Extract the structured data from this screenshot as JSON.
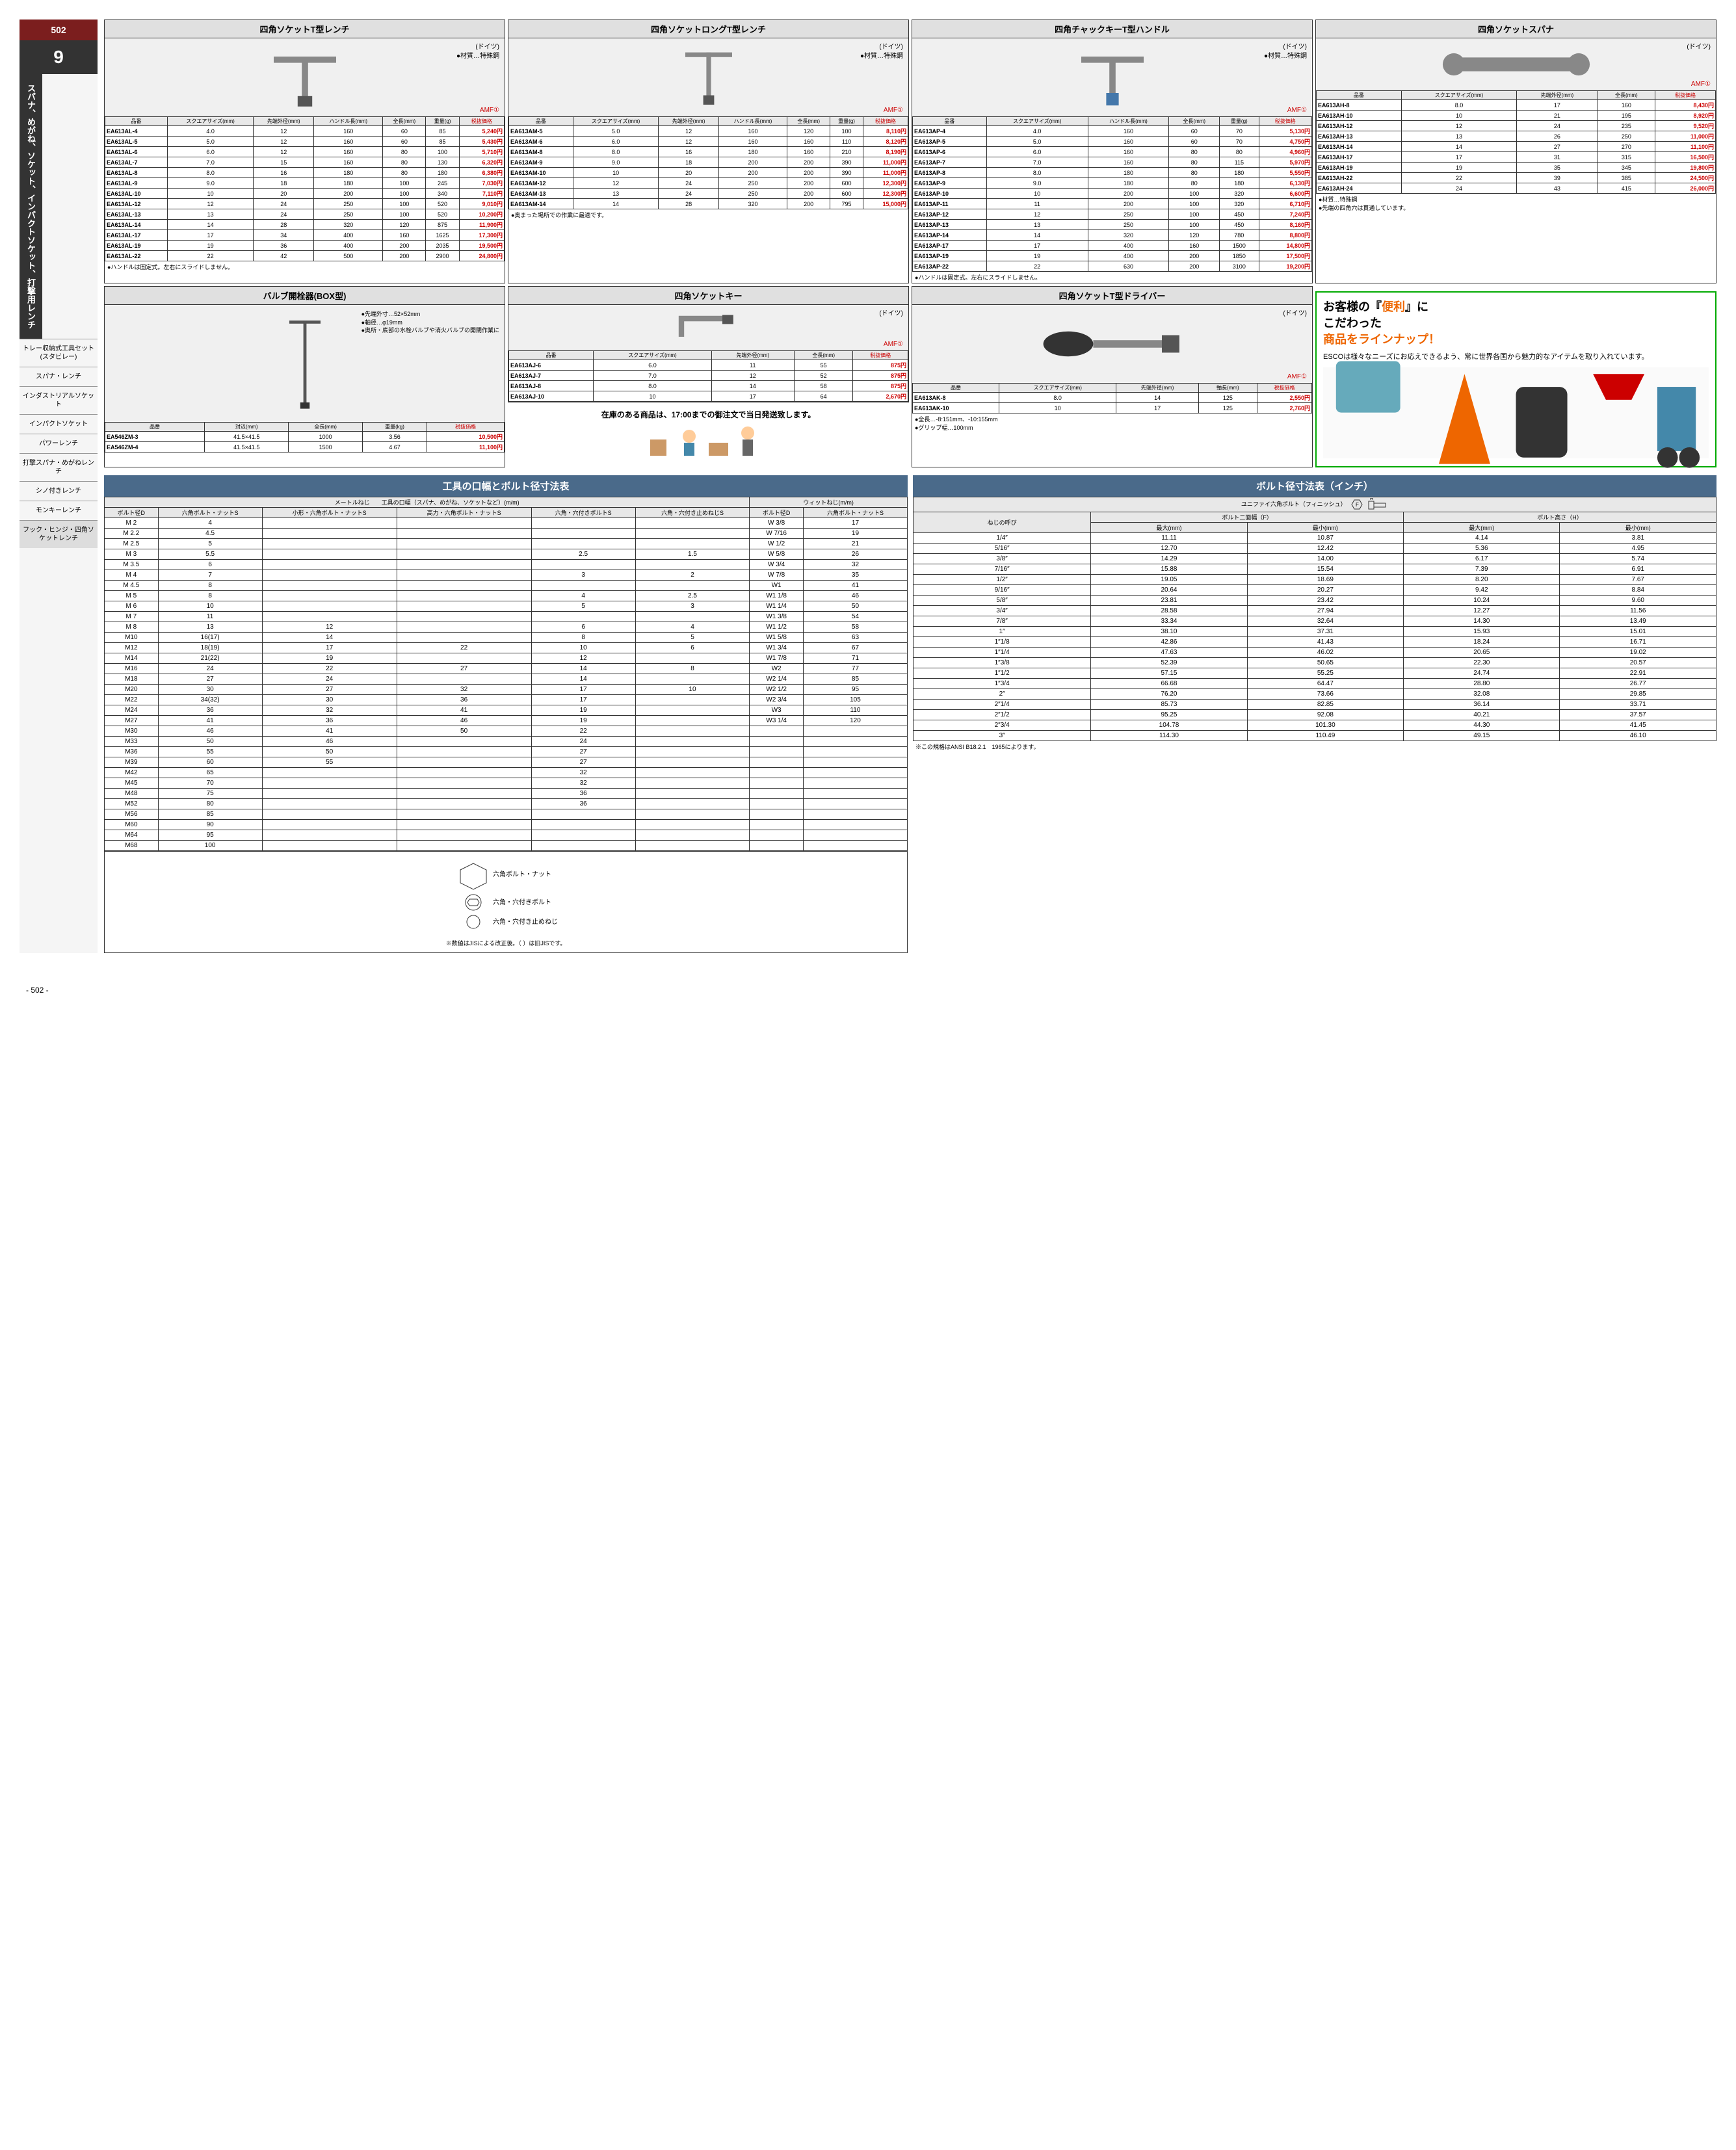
{
  "page_num": "502",
  "section_num": "9",
  "vertical_title": "スパナ、めがね、ソケット、インパクトソケット、打撃用レンチ",
  "sidebar_items": [
    "トレー収納式工具セット(スタビレー)",
    "スパナ・レンチ",
    "インダストリアルソケット",
    "インパクトソケット",
    "パワーレンチ",
    "打撃スパナ・めがねレンチ",
    "シノ付きレンチ",
    "モンキーレンチ",
    "フック・ヒンジ・四角ソケットレンチ"
  ],
  "products": {
    "p1": {
      "title": "四角ソケットT型レンチ",
      "country": "(ドイツ)",
      "material": "●材質…特殊鋼",
      "brand": "AMF①",
      "headers": [
        "品番",
        "スクエアサイズ(mm)",
        "先端外径(mm)",
        "ハンドル長(mm)",
        "全長(mm)",
        "重量(g)",
        "税抜価格"
      ],
      "rows": [
        [
          "EA613AL-4",
          "4.0",
          "12",
          "160",
          "60",
          "85",
          "5,240円"
        ],
        [
          "EA613AL-5",
          "5.0",
          "12",
          "160",
          "60",
          "85",
          "5,430円"
        ],
        [
          "EA613AL-6",
          "6.0",
          "12",
          "160",
          "80",
          "100",
          "5,710円"
        ],
        [
          "EA613AL-7",
          "7.0",
          "15",
          "160",
          "80",
          "130",
          "6,320円"
        ],
        [
          "EA613AL-8",
          "8.0",
          "16",
          "180",
          "80",
          "180",
          "6,380円"
        ],
        [
          "EA613AL-9",
          "9.0",
          "18",
          "180",
          "100",
          "245",
          "7,030円"
        ],
        [
          "EA613AL-10",
          "10",
          "20",
          "200",
          "100",
          "340",
          "7,110円"
        ],
        [
          "EA613AL-12",
          "12",
          "24",
          "250",
          "100",
          "520",
          "9,010円"
        ],
        [
          "EA613AL-13",
          "13",
          "24",
          "250",
          "100",
          "520",
          "10,200円"
        ],
        [
          "EA613AL-14",
          "14",
          "28",
          "320",
          "120",
          "875",
          "11,900円"
        ],
        [
          "EA613AL-17",
          "17",
          "34",
          "400",
          "160",
          "1625",
          "17,300円"
        ],
        [
          "EA613AL-19",
          "19",
          "36",
          "400",
          "200",
          "2035",
          "19,500円"
        ],
        [
          "EA613AL-22",
          "22",
          "42",
          "500",
          "200",
          "2900",
          "24,800円"
        ]
      ],
      "note": "●ハンドルは固定式。左右にスライドしません。"
    },
    "p2": {
      "title": "四角ソケットロングT型レンチ",
      "country": "(ドイツ)",
      "material": "●材質…特殊鋼",
      "brand": "AMF①",
      "headers": [
        "品番",
        "スクエアサイズ(mm)",
        "先端外径(mm)",
        "ハンドル長(mm)",
        "全長(mm)",
        "重量(g)",
        "税抜価格"
      ],
      "rows": [
        [
          "EA613AM-5",
          "5.0",
          "12",
          "160",
          "120",
          "100",
          "8,110円"
        ],
        [
          "EA613AM-6",
          "6.0",
          "12",
          "160",
          "160",
          "110",
          "8,120円"
        ],
        [
          "EA613AM-8",
          "8.0",
          "16",
          "180",
          "160",
          "210",
          "8,190円"
        ],
        [
          "EA613AM-9",
          "9.0",
          "18",
          "200",
          "200",
          "390",
          "11,000円"
        ],
        [
          "EA613AM-10",
          "10",
          "20",
          "200",
          "200",
          "390",
          "11,000円"
        ],
        [
          "EA613AM-12",
          "12",
          "24",
          "250",
          "200",
          "600",
          "12,300円"
        ],
        [
          "EA613AM-13",
          "13",
          "24",
          "250",
          "200",
          "600",
          "12,300円"
        ],
        [
          "EA613AM-14",
          "14",
          "28",
          "320",
          "200",
          "795",
          "15,000円"
        ]
      ],
      "note": "●奥まった場所での作業に最適です。"
    },
    "p3": {
      "title": "四角チャックキーT型ハンドル",
      "country": "(ドイツ)",
      "material": "●材質…特殊鋼",
      "brand": "AMF①",
      "headers": [
        "品番",
        "スクエアサイズ(mm)",
        "ハンドル長(mm)",
        "全長(mm)",
        "重量(g)",
        "税抜価格"
      ],
      "rows": [
        [
          "EA613AP-4",
          "4.0",
          "160",
          "60",
          "70",
          "5,130円"
        ],
        [
          "EA613AP-5",
          "5.0",
          "160",
          "60",
          "70",
          "4,750円"
        ],
        [
          "EA613AP-6",
          "6.0",
          "160",
          "80",
          "80",
          "4,960円"
        ],
        [
          "EA613AP-7",
          "7.0",
          "160",
          "80",
          "115",
          "5,970円"
        ],
        [
          "EA613AP-8",
          "8.0",
          "180",
          "80",
          "180",
          "5,550円"
        ],
        [
          "EA613AP-9",
          "9.0",
          "180",
          "80",
          "180",
          "6,130円"
        ],
        [
          "EA613AP-10",
          "10",
          "200",
          "100",
          "320",
          "6,600円"
        ],
        [
          "EA613AP-11",
          "11",
          "200",
          "100",
          "320",
          "6,710円"
        ],
        [
          "EA613AP-12",
          "12",
          "250",
          "100",
          "450",
          "7,240円"
        ],
        [
          "EA613AP-13",
          "13",
          "250",
          "100",
          "450",
          "8,160円"
        ],
        [
          "EA613AP-14",
          "14",
          "320",
          "120",
          "780",
          "8,800円"
        ],
        [
          "EA613AP-17",
          "17",
          "400",
          "160",
          "1500",
          "14,800円"
        ],
        [
          "EA613AP-19",
          "19",
          "400",
          "200",
          "1850",
          "17,500円"
        ],
        [
          "EA613AP-22",
          "22",
          "630",
          "200",
          "3100",
          "19,200円"
        ]
      ],
      "note": "●ハンドルは固定式。左右にスライドしません。"
    },
    "p4": {
      "title": "四角ソケットスパナ",
      "country": "(ドイツ)",
      "brand": "AMF①",
      "headers": [
        "品番",
        "スクエアサイズ(mm)",
        "先端外径(mm)",
        "全長(mm)",
        "税抜価格"
      ],
      "rows": [
        [
          "EA613AH-8",
          "8.0",
          "17",
          "160",
          "8,430円"
        ],
        [
          "EA613AH-10",
          "10",
          "21",
          "195",
          "8,920円"
        ],
        [
          "EA613AH-12",
          "12",
          "24",
          "235",
          "9,520円"
        ],
        [
          "EA613AH-13",
          "13",
          "26",
          "250",
          "11,000円"
        ],
        [
          "EA613AH-14",
          "14",
          "27",
          "270",
          "11,100円"
        ],
        [
          "EA613AH-17",
          "17",
          "31",
          "315",
          "16,500円"
        ],
        [
          "EA613AH-19",
          "19",
          "35",
          "345",
          "19,800円"
        ],
        [
          "EA613AH-22",
          "22",
          "39",
          "385",
          "24,500円"
        ],
        [
          "EA613AH-24",
          "24",
          "43",
          "415",
          "26,000円"
        ]
      ],
      "note": "●材質…特殊鋼\n●先端の四角穴は貫通しています。"
    },
    "p5": {
      "title": "バルブ開栓器(BOX型)",
      "notes": [
        "●先端外寸…52×52mm",
        "●軸径…φ19mm",
        "●奥所・底部の水栓バルブや消火バルブの開閉作業に"
      ],
      "headers": [
        "品番",
        "対辺(mm)",
        "全長(mm)",
        "重量(kg)",
        "税抜価格"
      ],
      "rows": [
        [
          "EA546ZM-3",
          "41.5×41.5",
          "1000",
          "3.56",
          "10,500円"
        ],
        [
          "EA546ZM-4",
          "41.5×41.5",
          "1500",
          "4.67",
          "11,100円"
        ]
      ]
    },
    "p6": {
      "title": "四角ソケットキー",
      "country": "(ドイツ)",
      "brand": "AMF①",
      "headers": [
        "品番",
        "スクエアサイズ(mm)",
        "先端外径(mm)",
        "全長(mm)",
        "税抜価格"
      ],
      "rows": [
        [
          "EA613AJ-6",
          "6.0",
          "11",
          "55",
          "875円"
        ],
        [
          "EA613AJ-7",
          "7.0",
          "12",
          "52",
          "875円"
        ],
        [
          "EA613AJ-8",
          "8.0",
          "14",
          "58",
          "875円"
        ],
        [
          "EA613AJ-10",
          "10",
          "17",
          "64",
          "2,670円"
        ]
      ]
    },
    "p7": {
      "title": "四角ソケットT型ドライバー",
      "country": "(ドイツ)",
      "brand": "AMF①",
      "headers": [
        "品番",
        "スクエアサイズ(mm)",
        "先端外径(mm)",
        "軸長(mm)",
        "税抜価格"
      ],
      "rows": [
        [
          "EA613AK-8",
          "8.0",
          "14",
          "125",
          "2,550円"
        ],
        [
          "EA613AK-10",
          "10",
          "17",
          "125",
          "2,760円"
        ]
      ],
      "note": "●全長…-8:151mm、-10:155mm\n●グリップ幅…100mm"
    }
  },
  "notice": "在庫のある商品は、17:00までの御注文で当日発送致します。",
  "promo": {
    "line1": "お客様の『",
    "benri": "便利",
    "line1b": "』に",
    "line2": "こだわった",
    "line3": "商品をラインナップ！",
    "text": "ESCOは様々なニーズにお応えできるよう、常に世界各国から魅力的なアイテムを取り入れています。"
  },
  "chart1": {
    "title": "工具の口幅とボルト径寸法表",
    "sub1": "メートルねじ",
    "sub2": "工具の口幅（スパナ、めがね、ソケットなど）(m/m)",
    "sub3": "ウィットねじ(m/m)",
    "headers": [
      "ボルト径D",
      "六角ボルト・ナットS",
      "小形・六角ボルト・ナットS",
      "高力・六角ボルト・ナットS",
      "六角・穴付きボルトS",
      "六角・穴付き止めねじS",
      "ボルト径D",
      "六角ボルト・ナットS"
    ],
    "rows": [
      [
        "M 2",
        "4",
        "",
        "",
        "",
        "",
        "W 3/8",
        "17"
      ],
      [
        "M 2.2",
        "4.5",
        "",
        "",
        "",
        "",
        "W 7/16",
        "19"
      ],
      [
        "M 2.5",
        "5",
        "",
        "",
        "",
        "",
        "W 1/2",
        "21"
      ],
      [
        "M 3",
        "5.5",
        "",
        "",
        "2.5",
        "1.5",
        "W 5/8",
        "26"
      ],
      [
        "M 3.5",
        "6",
        "",
        "",
        "",
        "",
        "W 3/4",
        "32"
      ],
      [
        "M 4",
        "7",
        "",
        "",
        "3",
        "2",
        "W 7/8",
        "35"
      ],
      [
        "M 4.5",
        "8",
        "",
        "",
        "",
        "",
        "W1",
        "41"
      ],
      [
        "M 5",
        "8",
        "",
        "",
        "4",
        "2.5",
        "W1 1/8",
        "46"
      ],
      [
        "M 6",
        "10",
        "",
        "",
        "5",
        "3",
        "W1 1/4",
        "50"
      ],
      [
        "M 7",
        "11",
        "",
        "",
        "",
        "",
        "W1 3/8",
        "54"
      ],
      [
        "M 8",
        "13",
        "12",
        "",
        "6",
        "4",
        "W1 1/2",
        "58"
      ],
      [
        "M10",
        "16(17)",
        "14",
        "",
        "8",
        "5",
        "W1 5/8",
        "63"
      ],
      [
        "M12",
        "18(19)",
        "17",
        "22",
        "10",
        "6",
        "W1 3/4",
        "67"
      ],
      [
        "M14",
        "21(22)",
        "19",
        "",
        "12",
        "",
        "W1 7/8",
        "71"
      ],
      [
        "M16",
        "24",
        "22",
        "27",
        "14",
        "8",
        "W2",
        "77"
      ],
      [
        "M18",
        "27",
        "24",
        "",
        "14",
        "",
        "W2 1/4",
        "85"
      ],
      [
        "M20",
        "30",
        "27",
        "32",
        "17",
        "10",
        "W2 1/2",
        "95"
      ],
      [
        "M22",
        "34(32)",
        "30",
        "36",
        "17",
        "",
        "W2 3/4",
        "105"
      ],
      [
        "M24",
        "36",
        "32",
        "41",
        "19",
        "",
        "W3",
        "110"
      ],
      [
        "M27",
        "41",
        "36",
        "46",
        "19",
        "",
        "W3 1/4",
        "120"
      ],
      [
        "M30",
        "46",
        "41",
        "50",
        "22",
        "",
        "",
        ""
      ],
      [
        "M33",
        "50",
        "46",
        "",
        "24",
        "",
        "",
        ""
      ],
      [
        "M36",
        "55",
        "50",
        "",
        "27",
        "",
        "",
        ""
      ],
      [
        "M39",
        "60",
        "55",
        "",
        "27",
        "",
        "",
        ""
      ],
      [
        "M42",
        "65",
        "",
        "",
        "32",
        "",
        "",
        ""
      ],
      [
        "M45",
        "70",
        "",
        "",
        "32",
        "",
        "",
        ""
      ],
      [
        "M48",
        "75",
        "",
        "",
        "36",
        "",
        "",
        ""
      ],
      [
        "M52",
        "80",
        "",
        "",
        "36",
        "",
        "",
        ""
      ],
      [
        "M56",
        "85",
        "",
        "",
        "",
        "",
        "",
        ""
      ],
      [
        "M60",
        "90",
        "",
        "",
        "",
        "",
        "",
        ""
      ],
      [
        "M64",
        "95",
        "",
        "",
        "",
        "",
        "",
        ""
      ],
      [
        "M68",
        "100",
        "",
        "",
        "",
        "",
        "",
        ""
      ]
    ],
    "diagram_labels": [
      "六角ボルト・ナット",
      "六角・穴付きボルト",
      "六角・穴付き止めねじ"
    ],
    "diagram_note": "※数値はJISによる改正後。（ ）は旧JISです。"
  },
  "chart2": {
    "title": "ボルト径寸法表（インチ）",
    "sub": "ユニファイ六角ボルト（フィニッシュ）",
    "group1": "ボルト二面幅（F）",
    "group2": "ボルト高さ（H）",
    "headers": [
      "ねじの呼び",
      "最大(mm)",
      "最小(mm)",
      "最大(mm)",
      "最小(mm)"
    ],
    "rows": [
      [
        "1/4″",
        "11.11",
        "10.87",
        "4.14",
        "3.81"
      ],
      [
        "5/16″",
        "12.70",
        "12.42",
        "5.36",
        "4.95"
      ],
      [
        "3/8″",
        "14.29",
        "14.00",
        "6.17",
        "5.74"
      ],
      [
        "7/16″",
        "15.88",
        "15.54",
        "7.39",
        "6.91"
      ],
      [
        "1/2″",
        "19.05",
        "18.69",
        "8.20",
        "7.67"
      ],
      [
        "9/16″",
        "20.64",
        "20.27",
        "9.42",
        "8.84"
      ],
      [
        "5/8″",
        "23.81",
        "23.42",
        "10.24",
        "9.60"
      ],
      [
        "3/4″",
        "28.58",
        "27.94",
        "12.27",
        "11.56"
      ],
      [
        "7/8″",
        "33.34",
        "32.64",
        "14.30",
        "13.49"
      ],
      [
        "1″",
        "38.10",
        "37.31",
        "15.93",
        "15.01"
      ],
      [
        "1″1/8",
        "42.86",
        "41.43",
        "18.24",
        "16.71"
      ],
      [
        "1″1/4",
        "47.63",
        "46.02",
        "20.65",
        "19.02"
      ],
      [
        "1″3/8",
        "52.39",
        "50.65",
        "22.30",
        "20.57"
      ],
      [
        "1″1/2",
        "57.15",
        "55.25",
        "24.74",
        "22.91"
      ],
      [
        "1″3/4",
        "66.68",
        "64.47",
        "28.80",
        "26.77"
      ],
      [
        "2″",
        "76.20",
        "73.66",
        "32.08",
        "29.85"
      ],
      [
        "2″1/4",
        "85.73",
        "82.85",
        "36.14",
        "33.71"
      ],
      [
        "2″1/2",
        "95.25",
        "92.08",
        "40.21",
        "37.57"
      ],
      [
        "2″3/4",
        "104.78",
        "101.30",
        "44.30",
        "41.45"
      ],
      [
        "3″",
        "114.30",
        "110.49",
        "49.15",
        "46.10"
      ]
    ],
    "note": "※この規格はANSI B18.2.1　1965によります。"
  },
  "footer": "- 502 -"
}
